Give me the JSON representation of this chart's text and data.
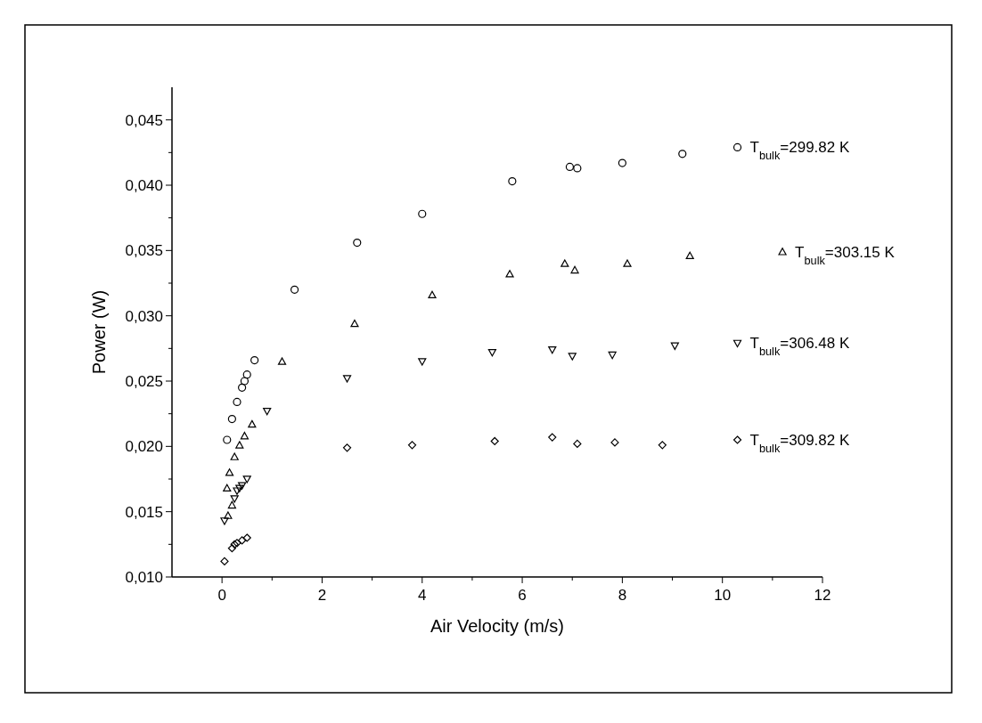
{
  "chart_data": {
    "type": "scatter",
    "xlabel": "Air Velocity (m/s)",
    "ylabel": "Power (W)",
    "xlim": [
      -1,
      12
    ],
    "xticks": [
      0,
      2,
      4,
      6,
      8,
      10,
      12
    ],
    "ylim": [
      0.01,
      0.0475
    ],
    "yticks": [
      {
        "value": 0.01,
        "label": "0,010"
      },
      {
        "value": 0.015,
        "label": "0,015"
      },
      {
        "value": 0.02,
        "label": "0,020"
      },
      {
        "value": 0.025,
        "label": "0,025"
      },
      {
        "value": 0.03,
        "label": "0,030"
      },
      {
        "value": 0.035,
        "label": "0,035"
      },
      {
        "value": 0.04,
        "label": "0,040"
      },
      {
        "value": 0.045,
        "label": "0,045"
      }
    ],
    "grid": false,
    "legend": "right",
    "series": [
      {
        "name": "T$_{bulk}$=299.82 K",
        "color": "#000000",
        "marker": "circle",
        "x": [
          0.1,
          0.2,
          0.3,
          0.4,
          0.45,
          0.5,
          0.65,
          1.45,
          2.7,
          4.0,
          5.8,
          6.95,
          7.1,
          8.0,
          9.2
        ],
        "values": [
          0.0205,
          0.0221,
          0.0234,
          0.0245,
          0.025,
          0.0255,
          0.0266,
          0.032,
          0.0356,
          0.0378,
          0.0403,
          0.0414,
          0.0413,
          0.0417,
          0.0424
        ]
      },
      {
        "name": "T$_{bulk}$=303.15 K",
        "color": "#000000",
        "marker": "triangle",
        "x": [
          0.12,
          0.2,
          0.1,
          0.15,
          0.25,
          0.35,
          0.45,
          0.6,
          1.2,
          2.65,
          4.2,
          5.75,
          6.85,
          7.05,
          8.1,
          9.35
        ],
        "values": [
          0.0147,
          0.0155,
          0.0168,
          0.018,
          0.0192,
          0.0201,
          0.0208,
          0.0217,
          0.0265,
          0.0294,
          0.0316,
          0.0332,
          0.034,
          0.0335,
          0.034,
          0.0346
        ]
      },
      {
        "name": "T$_{bulk}$=306.48 K",
        "color": "#000000",
        "marker": "triangle-down",
        "x": [
          0.05,
          0.25,
          0.3,
          0.35,
          0.4,
          0.5,
          0.9,
          2.5,
          4.0,
          5.4,
          6.6,
          7.0,
          7.8,
          9.05
        ],
        "values": [
          0.0143,
          0.016,
          0.0166,
          0.0168,
          0.017,
          0.0175,
          0.0227,
          0.0252,
          0.0265,
          0.0272,
          0.0274,
          0.0269,
          0.027,
          0.0277
        ]
      },
      {
        "name": "T$_{bulk}$=309.82 K",
        "color": "#000000",
        "marker": "diamond",
        "x": [
          0.05,
          0.2,
          0.25,
          0.3,
          0.4,
          0.5,
          2.5,
          3.8,
          5.45,
          6.6,
          7.1,
          7.85,
          8.8
        ],
        "values": [
          0.0112,
          0.0122,
          0.0125,
          0.0126,
          0.0128,
          0.013,
          0.0199,
          0.0201,
          0.0204,
          0.0207,
          0.0202,
          0.0203,
          0.0201
        ]
      }
    ]
  }
}
